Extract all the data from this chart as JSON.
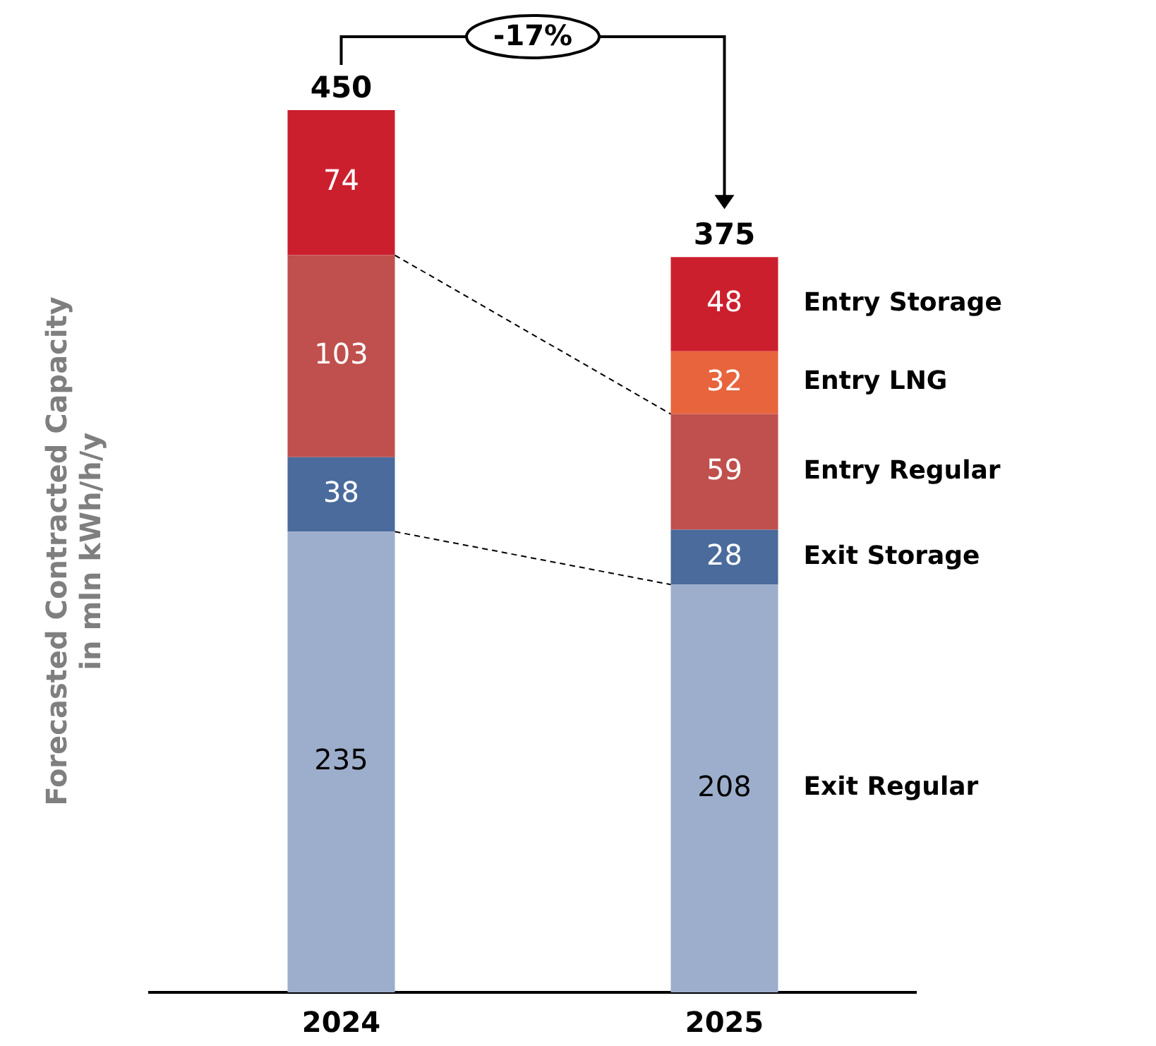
{
  "chart_data": {
    "type": "bar",
    "stacked": true,
    "ylabel": "Forecasted Contracted Capacity\nin mln kWh/h/y",
    "categories": [
      "2024",
      "2025"
    ],
    "series": [
      {
        "name": "Exit Regular",
        "color": "#9daecc",
        "values": [
          235,
          208
        ]
      },
      {
        "name": "Exit Storage",
        "color": "#4a6b9c",
        "values": [
          38,
          28
        ]
      },
      {
        "name": "Entry Regular",
        "color": "#c0504d",
        "values": [
          103,
          59
        ]
      },
      {
        "name": "Entry LNG",
        "color": "#e8643c",
        "values": [
          null,
          32
        ]
      },
      {
        "name": "Entry Storage",
        "color": "#cc1f2e",
        "values": [
          74,
          48
        ]
      }
    ],
    "data_labels": true,
    "totals": [
      "450",
      "375"
    ],
    "annotations": [
      "-17%"
    ],
    "legend": false,
    "grid": false
  }
}
